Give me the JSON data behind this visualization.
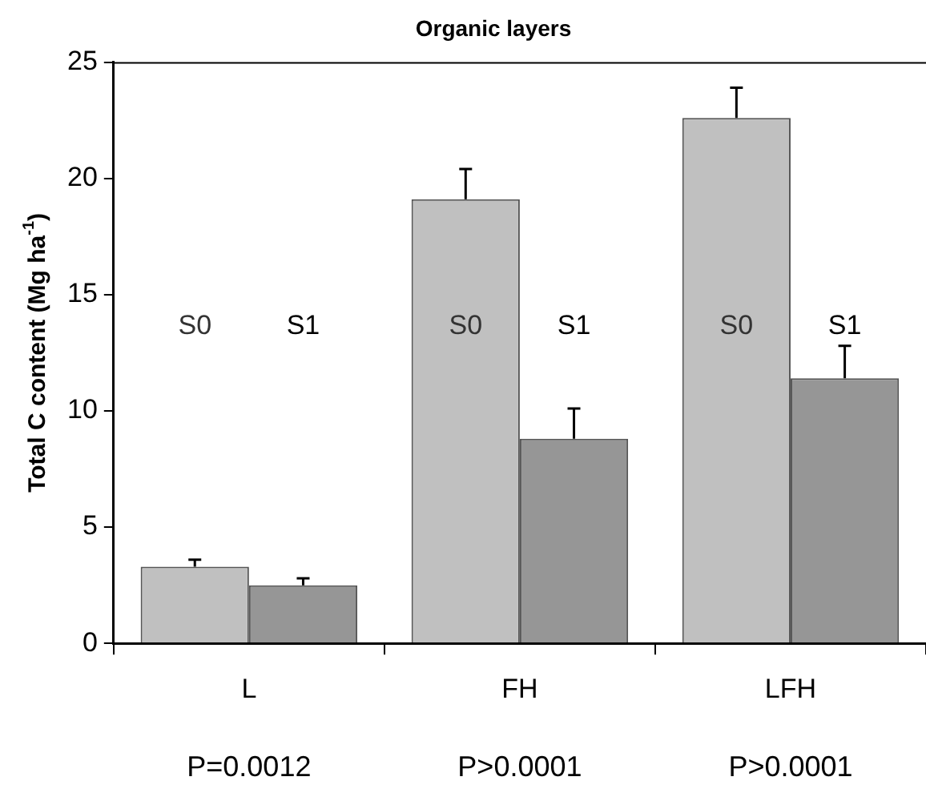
{
  "chart_data": {
    "type": "bar",
    "title": "Organic layers",
    "ylabel": "Total C content (Mg ha$^{-1}$)",
    "categories": [
      "L",
      "FH",
      "LFH"
    ],
    "series": [
      {
        "name": "S0",
        "color": "#c0c0c0",
        "values": [
          3.3,
          19.1,
          22.6
        ],
        "errors": [
          [
            3.3,
            3.6
          ],
          [
            19.1,
            20.4
          ],
          [
            22.6,
            23.9
          ]
        ]
      },
      {
        "name": "S1",
        "color": "#969696",
        "values": [
          2.5,
          8.8,
          11.4
        ],
        "errors": [
          [
            2.5,
            2.8
          ],
          [
            8.8,
            10.1
          ],
          [
            11.4,
            12.8
          ]
        ]
      }
    ],
    "ylim": [
      0,
      25
    ],
    "yticks": [
      0,
      5,
      10,
      15,
      20,
      25
    ],
    "grid": false,
    "legend": false,
    "annotations": [
      "P=0.0012",
      "P>0.0001",
      "P>0.0001"
    ]
  }
}
